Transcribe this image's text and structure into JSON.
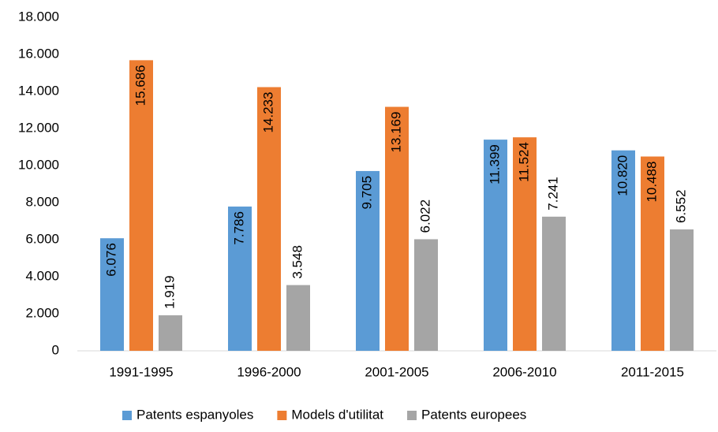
{
  "chart_data": {
    "type": "bar",
    "categories": [
      "1991-1995",
      "1996-2000",
      "2001-2005",
      "2006-2010",
      "2011-2015"
    ],
    "series": [
      {
        "name": "Patents espanyoles",
        "color": "#5b9bd5",
        "values": [
          6076,
          7786,
          9705,
          11399,
          10820
        ],
        "value_labels": [
          "6.076",
          "7.786",
          "9.705",
          "11.399",
          "10.820"
        ]
      },
      {
        "name": "Models d'utilitat",
        "color": "#ed7d31",
        "values": [
          15686,
          14233,
          13169,
          11524,
          10488
        ],
        "value_labels": [
          "15.686",
          "14.233",
          "13.169",
          "11.524",
          "10.488"
        ]
      },
      {
        "name": "Patents europees",
        "color": "#a5a5a5",
        "values": [
          1919,
          3548,
          6022,
          7241,
          6552
        ],
        "value_labels": [
          "1.919",
          "3.548",
          "6.022",
          "7.241",
          "6.552"
        ]
      }
    ],
    "ylim": [
      0,
      18000
    ],
    "yticks": [
      0,
      {
        "value": 2000,
        "label": "2.000"
      },
      {
        "value": 4000,
        "label": "4.000"
      },
      {
        "value": 6000,
        "label": "6.000"
      },
      {
        "value": 8000,
        "label": "8.000"
      },
      {
        "value": 10000,
        "label": "10.000"
      },
      {
        "value": 12000,
        "label": "12.000"
      },
      {
        "value": 14000,
        "label": "14.000"
      },
      {
        "value": 16000,
        "label": "16.000"
      },
      {
        "value": 18000,
        "label": "18.000"
      }
    ],
    "grid": false,
    "legend": "bottom"
  }
}
